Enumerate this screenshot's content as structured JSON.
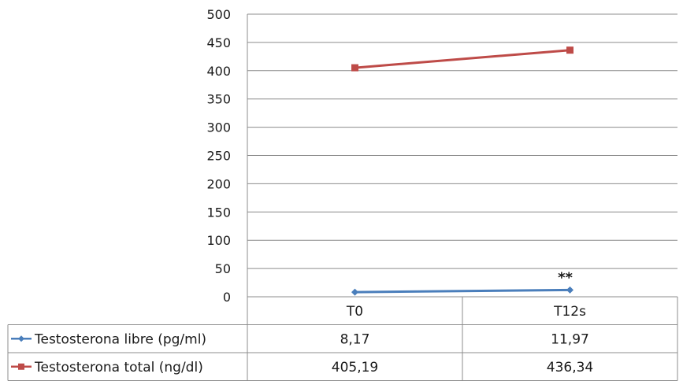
{
  "chart_data": {
    "type": "line",
    "categories": [
      "T0",
      "T12s"
    ],
    "series": [
      {
        "name": "Testosterona libre (pg/ml)",
        "values": [
          8.17,
          11.97
        ],
        "value_labels": [
          "8,17",
          "11,97"
        ],
        "color": "#4a7ebb",
        "marker": "diamond"
      },
      {
        "name": "Testosterona total (ng/dl)",
        "values": [
          405.19,
          436.34
        ],
        "value_labels": [
          "405,19",
          "436,34"
        ],
        "color": "#be4b48",
        "marker": "square"
      }
    ],
    "ylim": [
      0,
      500
    ],
    "yticks": [
      "0",
      "50",
      "100",
      "150",
      "200",
      "250",
      "300",
      "350",
      "400",
      "450",
      "500"
    ],
    "annotations": [
      {
        "text": "**",
        "series": 0,
        "category": 1
      }
    ],
    "grid": "horizontal",
    "legend": "data-table"
  }
}
